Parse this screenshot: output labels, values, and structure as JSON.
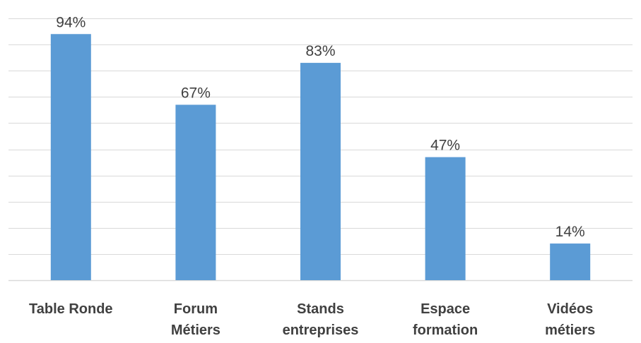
{
  "chart_data": {
    "type": "bar",
    "categories": [
      [
        "Table Ronde"
      ],
      [
        "Forum",
        "Métiers"
      ],
      [
        "Stands",
        "entreprises"
      ],
      [
        "Espace",
        "formation"
      ],
      [
        "Vidéos",
        "métiers"
      ]
    ],
    "values": [
      94,
      67,
      83,
      47,
      14
    ],
    "data_labels": [
      "94%",
      "67%",
      "83%",
      "47%",
      "14%"
    ],
    "title": "",
    "xlabel": "",
    "ylabel": "",
    "ylim": [
      0,
      100
    ],
    "grid": true,
    "bar_color": "#5b9bd5",
    "text_color": "#404040",
    "grid_color": "#d9d9d9"
  }
}
